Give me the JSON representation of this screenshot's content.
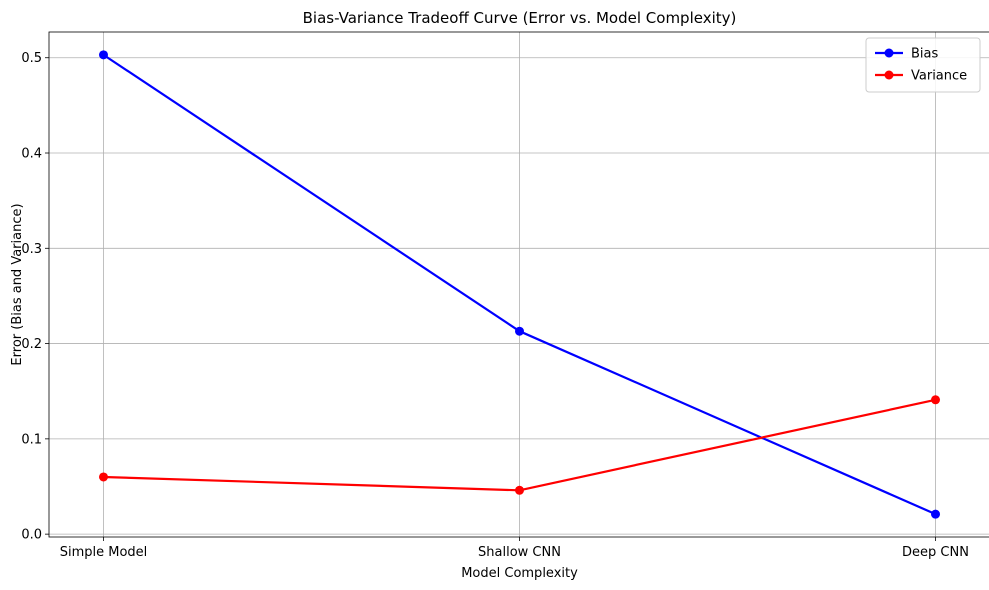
{
  "chart_data": {
    "type": "line",
    "title": "Bias-Variance Tradeoff Curve (Error vs. Model Complexity)",
    "xlabel": "Model Complexity",
    "ylabel": "Error (Bias and Variance)",
    "categories": [
      "Simple Model",
      "Shallow CNN",
      "Deep CNN"
    ],
    "ylim": [
      -0.003,
      0.527
    ],
    "yticks": [
      "0.0",
      "0.1",
      "0.2",
      "0.3",
      "0.4",
      "0.5"
    ],
    "grid": true,
    "legend_position": "top-right",
    "series": [
      {
        "name": "Bias",
        "color": "#0000ff",
        "marker": "circle",
        "values": [
          0.503,
          0.213,
          0.021
        ]
      },
      {
        "name": "Variance",
        "color": "#ff0000",
        "marker": "circle",
        "values": [
          0.06,
          0.046,
          0.141
        ]
      }
    ]
  }
}
